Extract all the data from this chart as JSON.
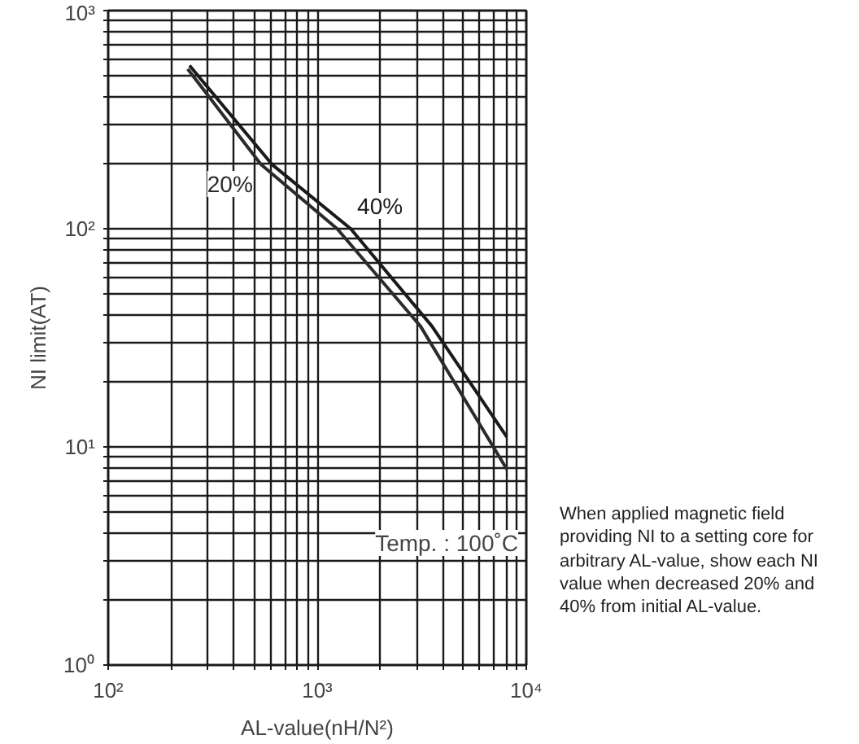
{
  "chart_data": {
    "type": "line",
    "xlabel": "AL-value(nH/N²)",
    "ylabel": "NI limit(AT)",
    "log": "xy",
    "grid": true,
    "legend": false,
    "marker": "none",
    "line_style": "solid",
    "xlim": [
      100,
      10000
    ],
    "ylim": [
      1,
      1000
    ],
    "xticks": [
      {
        "value": 100,
        "label": "10²"
      },
      {
        "value": 200,
        "label": null
      },
      {
        "value": 300,
        "label": null
      },
      {
        "value": 400,
        "label": null
      },
      {
        "value": 500,
        "label": null
      },
      {
        "value": 600,
        "label": null
      },
      {
        "value": 700,
        "label": null
      },
      {
        "value": 800,
        "label": null
      },
      {
        "value": 900,
        "label": null
      },
      {
        "value": 1000,
        "label": "10³"
      },
      {
        "value": 2000,
        "label": null
      },
      {
        "value": 3000,
        "label": null
      },
      {
        "value": 4000,
        "label": null
      },
      {
        "value": 5000,
        "label": null
      },
      {
        "value": 6000,
        "label": null
      },
      {
        "value": 7000,
        "label": null
      },
      {
        "value": 8000,
        "label": null
      },
      {
        "value": 9000,
        "label": null
      },
      {
        "value": 10000,
        "label": "10⁴"
      }
    ],
    "yticks": [
      {
        "value": 1,
        "label": "10⁰"
      },
      {
        "value": 2,
        "label": null
      },
      {
        "value": 3,
        "label": null
      },
      {
        "value": 4,
        "label": null
      },
      {
        "value": 5,
        "label": null
      },
      {
        "value": 6,
        "label": null
      },
      {
        "value": 7,
        "label": null
      },
      {
        "value": 8,
        "label": null
      },
      {
        "value": 9,
        "label": null
      },
      {
        "value": 10,
        "label": "10¹"
      },
      {
        "value": 20,
        "label": null
      },
      {
        "value": 30,
        "label": null
      },
      {
        "value": 40,
        "label": null
      },
      {
        "value": 50,
        "label": null
      },
      {
        "value": 60,
        "label": null
      },
      {
        "value": 70,
        "label": null
      },
      {
        "value": 80,
        "label": null
      },
      {
        "value": 90,
        "label": null
      },
      {
        "value": 100,
        "label": "10²"
      },
      {
        "value": 200,
        "label": null
      },
      {
        "value": 300,
        "label": null
      },
      {
        "value": 400,
        "label": null
      },
      {
        "value": 500,
        "label": null
      },
      {
        "value": 600,
        "label": null
      },
      {
        "value": 700,
        "label": null
      },
      {
        "value": 800,
        "label": null
      },
      {
        "value": 900,
        "label": null
      },
      {
        "value": 1000,
        "label": "10³"
      }
    ],
    "series": [
      {
        "name": "40%",
        "color": "#1a1a1a",
        "x": [
          245,
          608,
          1445,
          3540,
          8070
        ],
        "values": [
          560,
          197,
          100,
          35.7,
          11.1
        ]
      },
      {
        "name": "20%",
        "color": "#2b2b2b",
        "x": [
          240,
          538,
          1245,
          3120,
          8070
        ],
        "values": [
          540,
          197,
          100,
          35.7,
          7.9
        ]
      }
    ],
    "annotations": [
      "Temp. : 100˚C",
      "When applied magnetic field providing NI to a setting core for arbitrary AL-value, show each NI value when decreased 20% and 40% from initial AL-value."
    ]
  }
}
